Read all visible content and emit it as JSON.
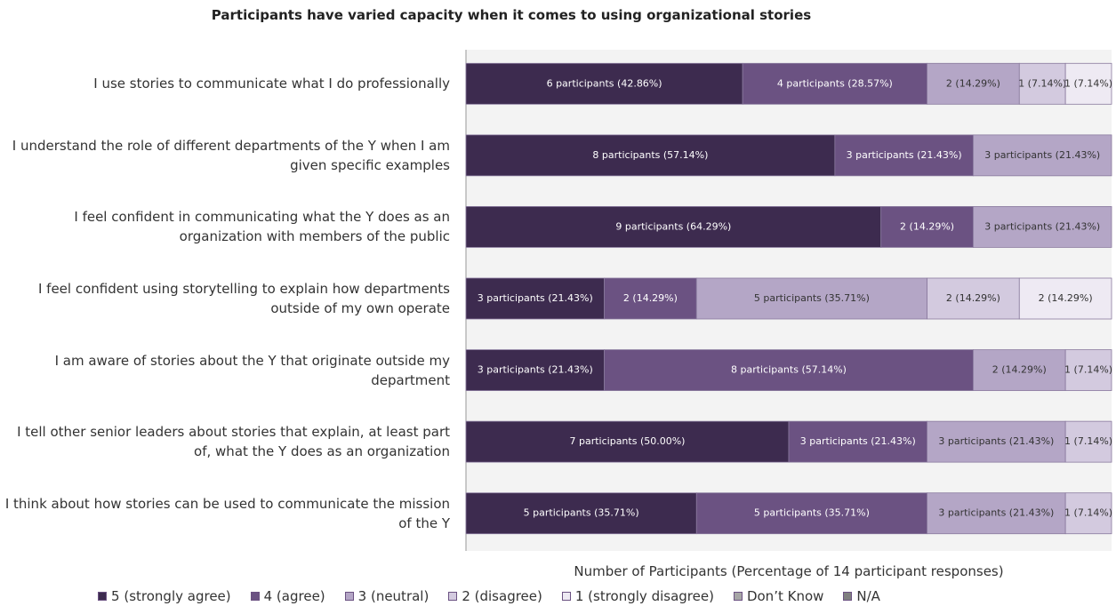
{
  "chart_data": {
    "type": "stacked_bar_horizontal",
    "title": "Participants have varied capacity when it comes to using organizational stories",
    "x_label": "Number of Participants (Percentage of 14 participant responses)",
    "categories": [
      "I use stories to communicate what I do professionally",
      "I understand the role of different departments of the Y when I am given specific examples",
      "I feel confident in communicating what the Y does as an organization with members of the public",
      "I feel confident using storytelling to explain how departments outside of my own operate",
      "I am aware of stories about the Y that originate outside my department",
      "I tell other senior leaders about stories that explain, at least part of, what the Y does as an organization",
      "I think about how stories can be used to communicate the mission of the Y"
    ],
    "xlim": [
      0,
      14
    ],
    "series": [
      {
        "name": "5 (strongly agree)",
        "color": "#3d2b4f",
        "values": [
          6,
          8,
          9,
          3,
          3,
          7,
          5
        ],
        "value_labels": [
          "6 participants (42.86%)",
          "8 participants (57.14%)",
          "9 participants (64.29%)",
          "3 participants (21.43%)",
          "3 participants (21.43%)",
          "7 participants (50.00%)",
          "5 participants (35.71%)"
        ]
      },
      {
        "name": "4 (agree)",
        "color": "#6b5282",
        "values": [
          4,
          3,
          2,
          2,
          8,
          3,
          5
        ],
        "value_labels": [
          "4 participants (28.57%)",
          "3 participants (21.43%)",
          "2 (14.29%)",
          "2 (14.29%)",
          "8 participants (57.14%)",
          "3 participants (21.43%)",
          "5 participants (35.71%)"
        ]
      },
      {
        "name": "3 (neutral)",
        "color": "#b4a6c6",
        "values": [
          2,
          3,
          3,
          5,
          2,
          3,
          3
        ],
        "value_labels": [
          "2 (14.29%)",
          "3 participants (21.43%)",
          "3 participants (21.43%)",
          "5 participants (35.71%)",
          "2 (14.29%)",
          "3 participants (21.43%)",
          "3 participants (21.43%)"
        ]
      },
      {
        "name": "2 (disagree)",
        "color": "#d3cadf",
        "values": [
          1,
          0,
          0,
          2,
          1,
          1,
          1
        ],
        "value_labels": [
          "1 (7.14%)",
          null,
          null,
          "2 (14.29%)",
          "1 (7.14%)",
          "1 (7.14%)",
          "1 (7.14%)"
        ]
      },
      {
        "name": "1 (strongly disagree)",
        "color": "#eeeaf3",
        "values": [
          1,
          0,
          0,
          2,
          0,
          0,
          0
        ],
        "value_labels": [
          "1 (7.14%)",
          null,
          null,
          "2 (14.29%)",
          null,
          null,
          null
        ]
      },
      {
        "name": "Don’t Know",
        "color": "#a6a6a6",
        "values": [
          0,
          0,
          0,
          0,
          0,
          0,
          0
        ]
      },
      {
        "name": "N/A",
        "color": "#7f7f7f",
        "values": [
          0,
          0,
          0,
          0,
          0,
          0,
          0
        ]
      }
    ]
  }
}
